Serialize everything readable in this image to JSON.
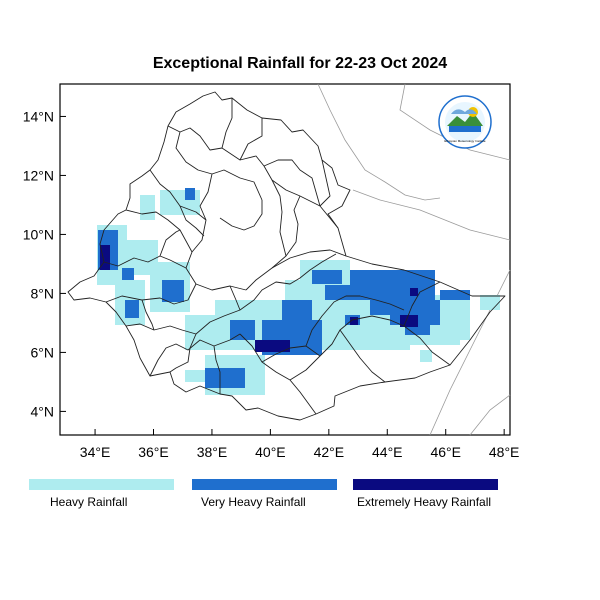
{
  "title": "Exceptional Rainfall for 22-23 Oct 2024",
  "colors": {
    "heavy": "#aeecef",
    "very_heavy": "#1f6fce",
    "extremely_heavy": "#0a0a80"
  },
  "axes": {
    "lat_ticks": [
      "4°N",
      "6°N",
      "8°N",
      "10°N",
      "12°N",
      "14°N"
    ],
    "lon_ticks": [
      "34°E",
      "36°E",
      "38°E",
      "40°E",
      "42°E",
      "44°E",
      "46°E",
      "48°E"
    ],
    "lon_range": [
      32.8,
      48.2
    ],
    "lat_range": [
      3.2,
      15.1
    ]
  },
  "legend": [
    {
      "label": "Heavy Rainfall",
      "color_key": "heavy"
    },
    {
      "label": "Very Heavy Rainfall",
      "color_key": "very_heavy"
    },
    {
      "label": "Extremely Heavy Rainfall",
      "color_key": "extremely_heavy"
    }
  ],
  "logo": {
    "icon": "ethiopian-meteorology-institute-logo",
    "text": "Ethiopian Meteorology Institute"
  }
}
